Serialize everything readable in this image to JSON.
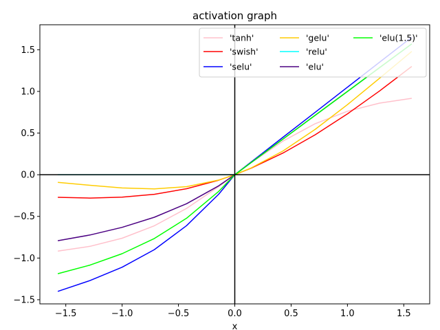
{
  "chart_data": {
    "type": "line",
    "title": "activation graph",
    "xlabel": "x",
    "ylabel": "",
    "xlim": [
      -1.73,
      1.73
    ],
    "ylim": [
      -1.55,
      1.8
    ],
    "xticks": [
      -1.5,
      -1.0,
      -0.5,
      0.0,
      0.5,
      1.0,
      1.5
    ],
    "xtick_labels": [
      "−1.5",
      "−1.0",
      "−0.5",
      "0.0",
      "0.5",
      "1.0",
      "1.5"
    ],
    "yticks": [
      -1.5,
      -1.0,
      -0.5,
      0.0,
      0.5,
      1.0,
      1.5
    ],
    "ytick_labels": [
      "−1.5",
      "−1.0",
      "−0.5",
      "0.0",
      "0.5",
      "1.0",
      "1.5"
    ],
    "grid": false,
    "legend_position": "top-right",
    "legend_columns": 3,
    "x": [
      -1.571,
      -1.285,
      -1.0,
      -0.714,
      -0.428,
      -0.143,
      0.0,
      0.143,
      0.428,
      0.714,
      1.0,
      1.285,
      1.571
    ],
    "series": [
      {
        "name": "'tanh'",
        "color": "#ffc0cb",
        "values": [
          -0.917,
          -0.859,
          -0.762,
          -0.613,
          -0.404,
          -0.142,
          0.0,
          0.142,
          0.404,
          0.613,
          0.762,
          0.859,
          0.917
        ]
      },
      {
        "name": "'swish'",
        "color": "#ff0000",
        "values": [
          -0.271,
          -0.28,
          -0.269,
          -0.235,
          -0.168,
          -0.066,
          0.0,
          0.077,
          0.26,
          0.48,
          0.731,
          1.005,
          1.3
        ]
      },
      {
        "name": "'selu'",
        "color": "#0000ff",
        "values": [
          -1.4,
          -1.27,
          -1.11,
          -0.899,
          -0.611,
          -0.234,
          0.0,
          0.15,
          0.45,
          0.75,
          1.051,
          1.35,
          1.65
        ]
      },
      {
        "name": "'gelu'",
        "color": "#ffcc00",
        "values": [
          -0.091,
          -0.127,
          -0.159,
          -0.17,
          -0.143,
          -0.064,
          0.0,
          0.08,
          0.285,
          0.545,
          0.841,
          1.158,
          1.48
        ]
      },
      {
        "name": "'relu'",
        "color": "#00ffff",
        "values": [
          0.0,
          0.0,
          0.0,
          0.0,
          0.0,
          0.0,
          0.0,
          0.143,
          0.428,
          0.714,
          1.0,
          1.285,
          1.571
        ]
      },
      {
        "name": "'elu'",
        "color": "#4b0082",
        "values": [
          -0.792,
          -0.723,
          -0.632,
          -0.51,
          -0.348,
          -0.133,
          0.0,
          0.143,
          0.428,
          0.714,
          1.0,
          1.285,
          1.571
        ]
      },
      {
        "name": "'elu(1.5)'",
        "color": "#00ff00",
        "values": [
          -1.188,
          -1.085,
          -0.948,
          -0.765,
          -0.522,
          -0.2,
          0.0,
          0.143,
          0.428,
          0.714,
          1.0,
          1.285,
          1.571
        ]
      }
    ]
  }
}
